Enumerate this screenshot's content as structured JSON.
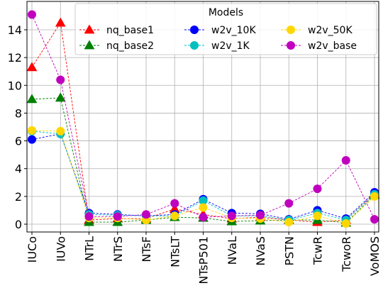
{
  "chart_data": {
    "type": "line",
    "title": "",
    "xlabel": "",
    "ylabel": "",
    "ylim": [
      -0.5,
      15.5
    ],
    "yticks": [
      0,
      2,
      4,
      6,
      8,
      10,
      12,
      14
    ],
    "grid": true,
    "legend": {
      "title": "Models",
      "placement": "top-right",
      "columns": 3
    },
    "categories": [
      "IUCo",
      "IUVo",
      "NTrL",
      "NTrS",
      "NTsF",
      "NTsLT",
      "NTsP501",
      "NVaL",
      "NVaS",
      "PSTN",
      "TcwR",
      "TcwoR",
      "VoMOS"
    ],
    "series": [
      {
        "name": "nq_base1",
        "color": "#ff0000",
        "marker": "triangle",
        "values": [
          11.3,
          14.5,
          0.3,
          0.4,
          0.4,
          1.1,
          0.7,
          0.4,
          0.5,
          0.3,
          0.15,
          0.3,
          2.2
        ]
      },
      {
        "name": "nq_base2",
        "color": "#008000",
        "marker": "triangle",
        "values": [
          9.0,
          9.1,
          0.15,
          0.15,
          0.3,
          0.5,
          0.45,
          0.2,
          0.25,
          0.3,
          0.3,
          0.1,
          2.1
        ]
      },
      {
        "name": "w2v_10K",
        "color": "#0000ff",
        "marker": "circle",
        "values": [
          6.1,
          6.5,
          0.8,
          0.7,
          0.6,
          0.7,
          1.8,
          0.8,
          0.75,
          0.35,
          1.0,
          0.4,
          2.3
        ]
      },
      {
        "name": "w2v_1K",
        "color": "#00bfbf",
        "marker": "circle",
        "values": [
          6.7,
          6.5,
          0.7,
          0.65,
          0.6,
          0.6,
          1.7,
          0.6,
          0.6,
          0.3,
          0.8,
          0.3,
          2.15
        ]
      },
      {
        "name": "w2v_50K",
        "color": "#ffd700",
        "marker": "circle",
        "values": [
          6.75,
          6.7,
          0.45,
          0.45,
          0.3,
          0.6,
          1.2,
          0.45,
          0.4,
          0.15,
          0.6,
          0.05,
          2.0
        ]
      },
      {
        "name": "w2v_base",
        "color": "#bf00bf",
        "marker": "circle",
        "values": [
          15.1,
          10.4,
          0.55,
          0.55,
          0.7,
          1.5,
          0.5,
          0.6,
          0.65,
          1.5,
          2.55,
          4.6,
          0.35
        ]
      }
    ]
  }
}
